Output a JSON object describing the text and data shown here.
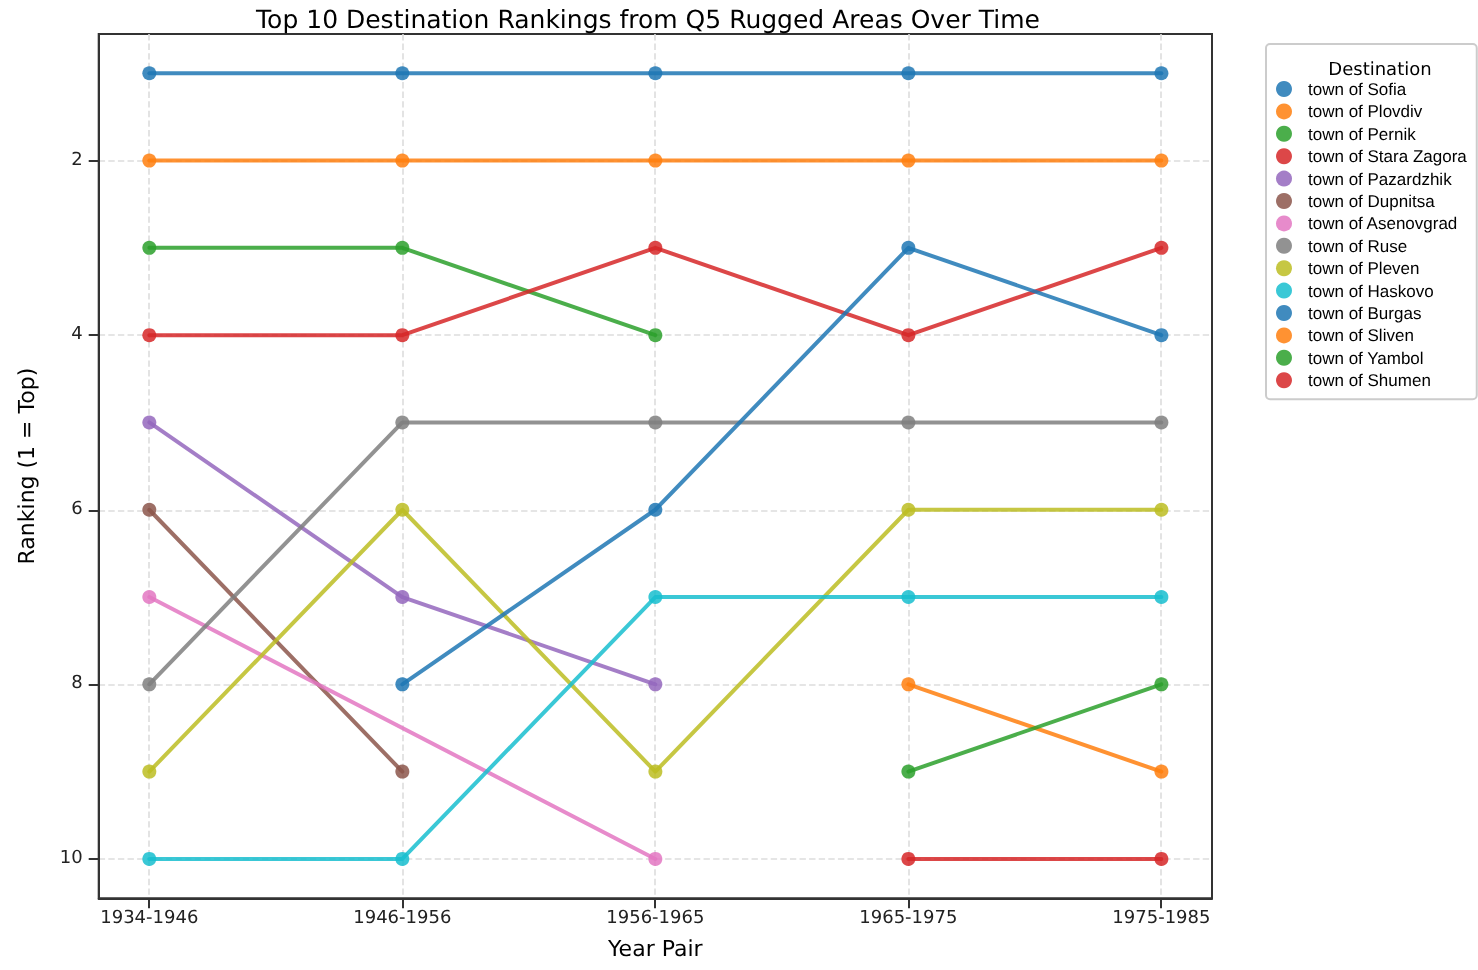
{
  "chart_data": {
    "type": "line",
    "title": "Top 10 Destination Rankings from Q5 Rugged Areas Over Time",
    "xlabel": "Year Pair",
    "ylabel": "Ranking (1 = Top)",
    "legend_title": "Destination",
    "categories": [
      "1934-1946",
      "1946-1956",
      "1956-1965",
      "1965-1975",
      "1975-1985"
    ],
    "series": [
      {
        "name": "town of Sofia",
        "color": "#1f77b4",
        "values": [
          1,
          1,
          1,
          1,
          1
        ]
      },
      {
        "name": "town of Plovdiv",
        "color": "#ff7f0e",
        "values": [
          2,
          2,
          2,
          2,
          2
        ]
      },
      {
        "name": "town of Pernik",
        "color": "#2ca02c",
        "values": [
          3,
          3,
          4,
          null,
          null
        ]
      },
      {
        "name": "town of Stara Zagora",
        "color": "#d62728",
        "values": [
          4,
          4,
          3,
          4,
          3
        ]
      },
      {
        "name": "town of Pazardzhik",
        "color": "#9467bd",
        "values": [
          5,
          7,
          8,
          null,
          null
        ]
      },
      {
        "name": "town of Dupnitsa",
        "color": "#8c564b",
        "values": [
          6,
          9,
          null,
          null,
          null
        ]
      },
      {
        "name": "town of Asenovgrad",
        "color": "#e377c2",
        "x": [
          "1934-1946",
          "1956-1965"
        ],
        "values": [
          7,
          10
        ]
      },
      {
        "name": "town of Ruse",
        "color": "#7f7f7f",
        "values": [
          8,
          5,
          5,
          5,
          5
        ]
      },
      {
        "name": "town of Pleven",
        "color": "#bcbd22",
        "values": [
          9,
          6,
          9,
          6,
          6
        ]
      },
      {
        "name": "town of Haskovo",
        "color": "#17becf",
        "values": [
          10,
          10,
          7,
          7,
          7
        ]
      },
      {
        "name": "town of Burgas",
        "color": "#1f77b4",
        "values": [
          null,
          8,
          6,
          3,
          4
        ]
      },
      {
        "name": "town of Sliven",
        "color": "#ff7f0e",
        "values": [
          null,
          null,
          null,
          8,
          9
        ]
      },
      {
        "name": "town of Yambol",
        "color": "#2ca02c",
        "values": [
          null,
          null,
          null,
          9,
          8
        ]
      },
      {
        "name": "town of Shumen",
        "color": "#d62728",
        "values": [
          null,
          null,
          null,
          10,
          10
        ]
      }
    ],
    "ylim": [
      10.45,
      0.55
    ],
    "yticks": [
      2,
      4,
      6,
      8,
      10
    ],
    "grid": true,
    "legend": "right",
    "marker": "circle",
    "line_style": "solid"
  }
}
